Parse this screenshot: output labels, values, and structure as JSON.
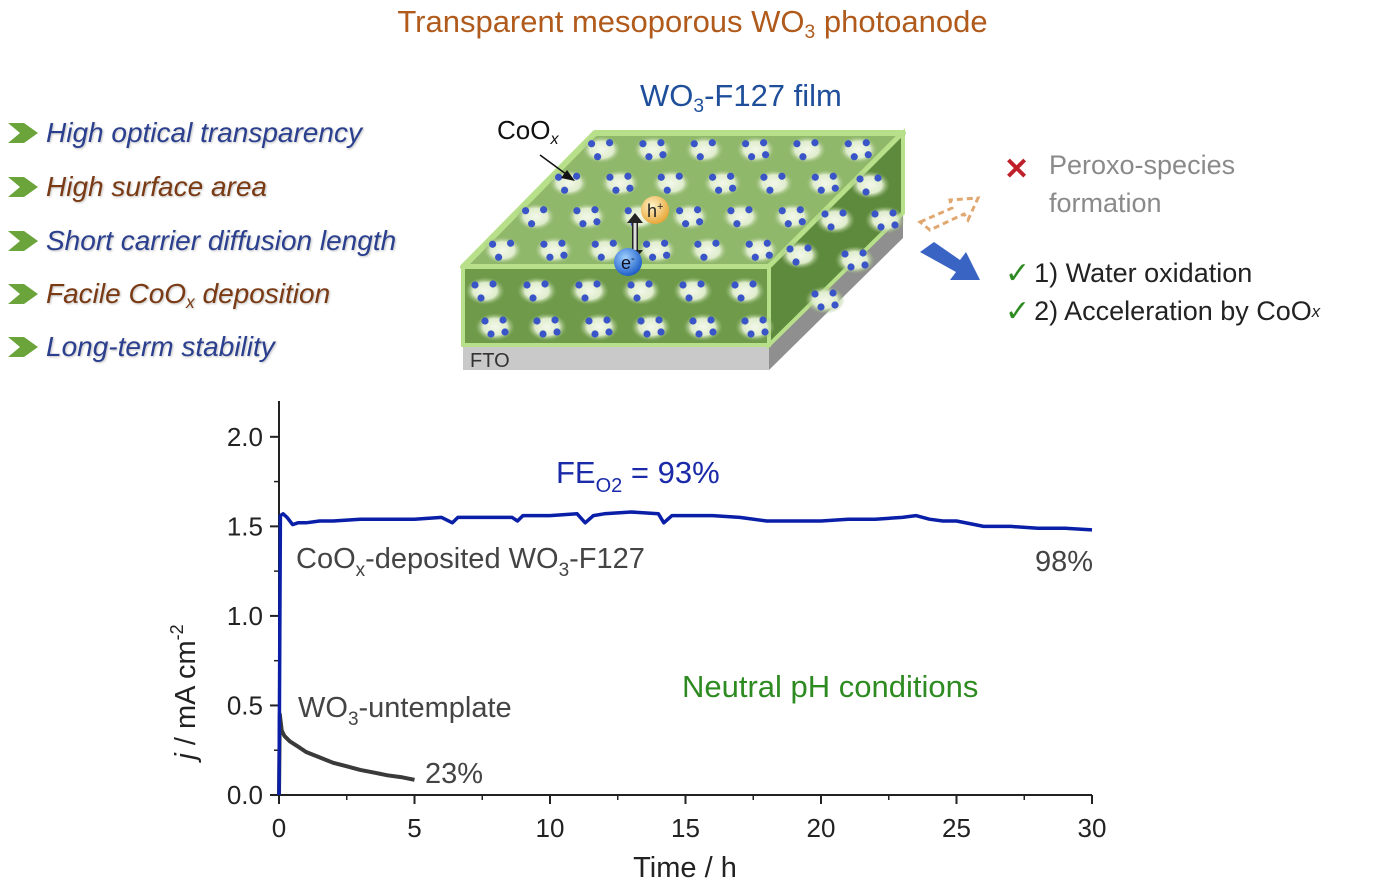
{
  "title": {
    "pre": "Transparent mesoporous WO",
    "sub": "3",
    "post": " photoanode"
  },
  "features": [
    {
      "parts": [
        "High optical transparency"
      ],
      "color": "blue"
    },
    {
      "parts": [
        "High surface area"
      ],
      "color": "brown"
    },
    {
      "parts": [
        "Short carrier diffusion length"
      ],
      "color": "blue"
    },
    {
      "pre": "Facile CoO",
      "sub": "x",
      "post": " deposition",
      "color": "brown"
    },
    {
      "parts": [
        "Long-term stability"
      ],
      "color": "blue"
    }
  ],
  "feature_texts": {
    "f0": "High optical transparency",
    "f1": "High surface area",
    "f2": "Short carrier diffusion length",
    "f3_pre": "Facile CoO",
    "f3_sub": "x",
    "f3_post": " deposition",
    "f4": "Long-term stability"
  },
  "diagram": {
    "film_title_pre": "WO",
    "film_title_sub": "3",
    "film_title_post": "-F127 film",
    "coox_pre": "CoO",
    "coox_sub": "x",
    "hole_label": "h",
    "hole_sup": "+",
    "electron_label": "e",
    "electron_sup": "-",
    "substrate_label": "FTO",
    "icons": [
      "chevron-right-icon",
      "cross-icon",
      "check-icon",
      "arrow-icon"
    ]
  },
  "outcomes": {
    "rejected_line1": "Peroxo-species",
    "rejected_line2": "formation",
    "ok1": "1) Water oxidation",
    "ok2_pre": "2) Acceleration by CoO",
    "ok2_sub": "x"
  },
  "colors": {
    "title": "#b05a1c",
    "blue_series": "#0a1fa8",
    "grey_series": "#3a3a3a",
    "green_text": "#2e8b22",
    "fe_text": "#1a2aa8"
  },
  "chart_data": {
    "type": "line",
    "title": "",
    "xlabel": "Time / h",
    "ylabel_pre": "j",
    "ylabel_mid": " / mA cm",
    "ylabel_sup": "-2",
    "xlim": [
      0,
      30
    ],
    "ylim": [
      0,
      2.2
    ],
    "xticks": [
      0,
      5,
      10,
      15,
      20,
      25,
      30
    ],
    "xtick_labels": [
      "0",
      "5",
      "10",
      "15",
      "20",
      "25",
      "30"
    ],
    "yticks": [
      0.0,
      0.5,
      1.0,
      1.5,
      2.0
    ],
    "ytick_labels": [
      "0.0",
      "0.5",
      "1.0",
      "1.5",
      "2.0"
    ],
    "grid": false,
    "series": [
      {
        "name": "CoOx-deposited WO3-F127",
        "label_pre": "CoO",
        "label_sub": "x",
        "label_mid": "-deposited WO",
        "label_sub2": "3",
        "label_post": "-F127",
        "end_label": "98%",
        "x": [
          0,
          0.05,
          0.15,
          0.3,
          0.5,
          0.7,
          1.0,
          1.5,
          2,
          3,
          4,
          5,
          6,
          6.4,
          6.6,
          7,
          8,
          8.6,
          8.8,
          9,
          10,
          11,
          11.3,
          11.6,
          12,
          13,
          14,
          14.2,
          14.5,
          15,
          16,
          17,
          18,
          19,
          20,
          21,
          22,
          23,
          23.5,
          24,
          24.5,
          25,
          26,
          27,
          28,
          29,
          30
        ],
        "y": [
          0.0,
          1.56,
          1.57,
          1.55,
          1.51,
          1.52,
          1.52,
          1.53,
          1.53,
          1.54,
          1.54,
          1.54,
          1.55,
          1.52,
          1.55,
          1.55,
          1.55,
          1.55,
          1.53,
          1.56,
          1.56,
          1.57,
          1.52,
          1.56,
          1.57,
          1.58,
          1.57,
          1.52,
          1.56,
          1.56,
          1.56,
          1.55,
          1.53,
          1.53,
          1.53,
          1.54,
          1.54,
          1.55,
          1.56,
          1.54,
          1.53,
          1.53,
          1.5,
          1.5,
          1.49,
          1.49,
          1.48
        ]
      },
      {
        "name": "WO3-untemplate",
        "label_pre": "WO",
        "label_sub": "3",
        "label_post": "-untemplate",
        "end_label": "23%",
        "x": [
          0,
          0.03,
          0.1,
          0.2,
          0.4,
          0.7,
          1.0,
          1.5,
          2.0,
          2.5,
          3.0,
          3.5,
          4.0,
          4.5,
          5.0
        ],
        "y": [
          0.0,
          0.45,
          0.36,
          0.33,
          0.3,
          0.27,
          0.24,
          0.21,
          0.18,
          0.16,
          0.14,
          0.125,
          0.11,
          0.1,
          0.085
        ]
      }
    ],
    "annotations": {
      "fe_pre": "FE",
      "fe_sub": "O2",
      "fe_post": " = 93%",
      "condition": "Neutral pH conditions"
    }
  }
}
